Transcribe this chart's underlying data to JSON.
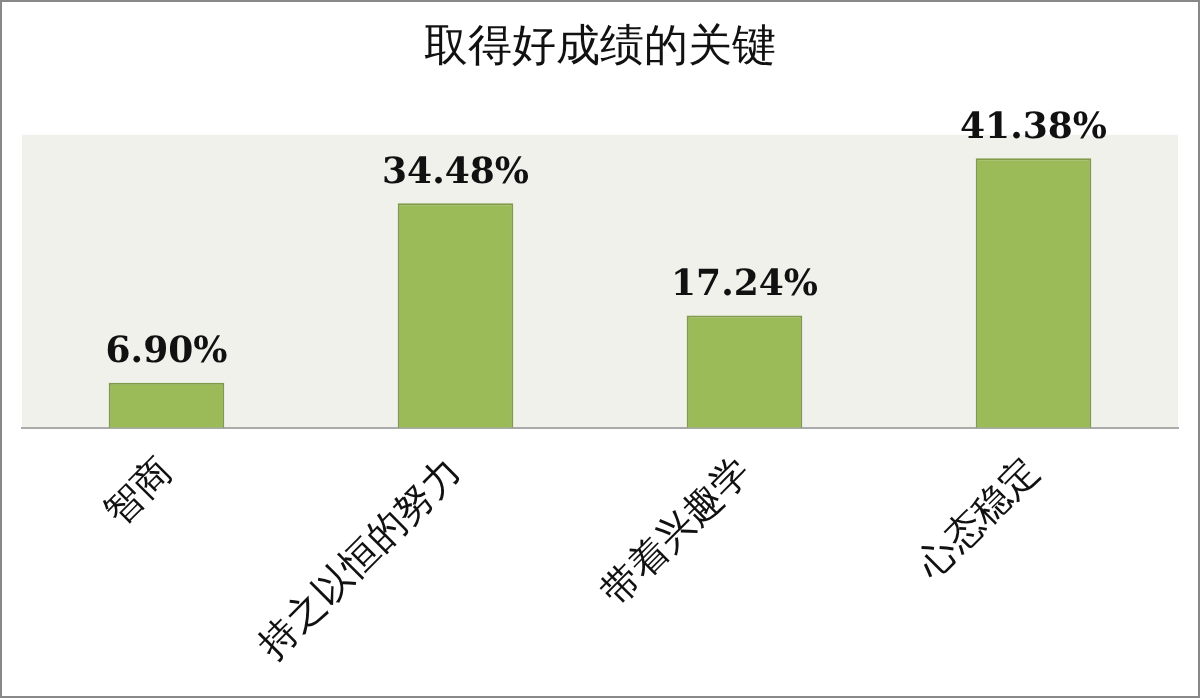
{
  "chart_data": {
    "type": "bar",
    "title": "取得好成绩的关键",
    "categories": [
      "智商",
      "持之以恒的努力",
      "带着兴趣学",
      "心态稳定"
    ],
    "values": [
      6.9,
      34.48,
      17.24,
      41.38
    ],
    "value_labels": [
      "6.90%",
      "34.48%",
      "17.24%",
      "41.38%"
    ],
    "color": "#9bbb59",
    "tick_labels": "x"
  }
}
